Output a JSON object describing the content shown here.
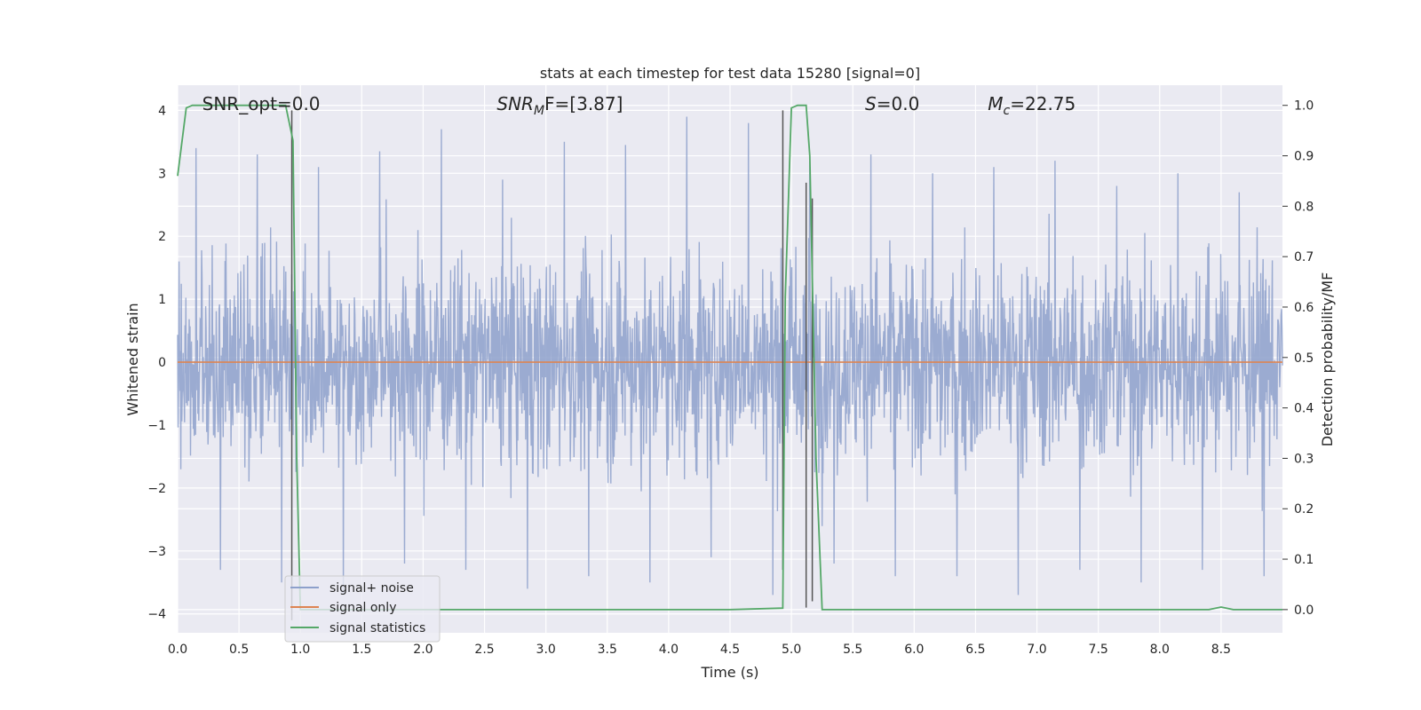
{
  "chart_data": {
    "type": "line",
    "title": "stats at each timestep for test data 15280 [signal=0]",
    "xlabel": "Time (s)",
    "ylabel_left": "Whitened strain",
    "ylabel_right": "Detection probability/MF",
    "xlim": [
      0.0,
      9.0
    ],
    "ylim_left": [
      -4.3,
      4.4
    ],
    "ylim_right": [
      -0.046,
      1.04
    ],
    "x_ticks": [
      0.0,
      0.5,
      1.0,
      1.5,
      2.0,
      2.5,
      3.0,
      3.5,
      4.0,
      4.5,
      5.0,
      5.5,
      6.0,
      6.5,
      7.0,
      7.5,
      8.0,
      8.5
    ],
    "x_tick_labels": [
      "0.0",
      "0.5",
      "1.0",
      "1.5",
      "2.0",
      "2.5",
      "3.0",
      "3.5",
      "4.0",
      "4.5",
      "5.0",
      "5.5",
      "6.0",
      "6.5",
      "7.0",
      "7.5",
      "8.0",
      "8.5"
    ],
    "y_left_ticks": [
      -4,
      -3,
      -2,
      -1,
      0,
      1,
      2,
      3,
      4
    ],
    "y_left_tick_labels": [
      "−4",
      "−3",
      "−2",
      "−1",
      "0",
      "1",
      "2",
      "3",
      "4"
    ],
    "y_right_ticks": [
      0.0,
      0.1,
      0.2,
      0.3,
      0.4,
      0.5,
      0.6,
      0.7,
      0.8,
      0.9,
      1.0
    ],
    "y_right_tick_labels": [
      "0.0",
      "0.1",
      "0.2",
      "0.3",
      "0.4",
      "0.5",
      "0.6",
      "0.7",
      "0.8",
      "0.9",
      "1.0"
    ],
    "annotations": [
      {
        "x": 0.2,
        "text": "SNR_opt=0.0"
      },
      {
        "x": 2.6,
        "text": "SNR_MF=[3.87]",
        "pre": "SNR",
        "sub": "M",
        "post": "F=[3.87]"
      },
      {
        "x": 5.6,
        "text": "S=0.0",
        "pre": "S",
        "post": "=0.0"
      },
      {
        "x": 6.6,
        "text": "M_c=22.75",
        "pre": "M",
        "sub": "c",
        "post": "=22.75"
      }
    ],
    "series": [
      {
        "name": "signal+ noise",
        "axis": "left",
        "color": "#8da0cb",
        "description": "whitened strain noise, roughly -2.3..2.5 envelope with spikes",
        "amplitude_envelope": 1.55,
        "peak_values": [
          3.4,
          3.3,
          3.1,
          3.35,
          3.7,
          2.9,
          3.5,
          3.45,
          3.9,
          3.8,
          3.2,
          3.3,
          3.0,
          3.1,
          3.2,
          2.8,
          3.0,
          2.7
        ],
        "trough_values": [
          -3.3,
          -3.5,
          -3.7,
          -3.2,
          -3.3,
          -3.6,
          -3.4,
          -3.5,
          -3.1,
          -3.7,
          -3.2,
          -3.4,
          -3.4,
          -3.7,
          -3.3,
          -3.5,
          -3.3,
          -3.4
        ]
      },
      {
        "name": "signal only",
        "axis": "left",
        "color": "#dd8452",
        "x": [
          0.0,
          9.0
        ],
        "y": [
          0.0,
          0.0
        ]
      },
      {
        "name": "signal statistics",
        "axis": "right",
        "color": "#55a868",
        "x": [
          0.0,
          0.07,
          0.12,
          0.2,
          0.88,
          0.94,
          0.97,
          1.0,
          1.05,
          4.5,
          4.93,
          4.95,
          5.0,
          5.05,
          5.12,
          5.15,
          5.2,
          5.25,
          8.4,
          8.5,
          8.6,
          9.0
        ],
        "y": [
          0.86,
          0.995,
          1.0,
          1.0,
          1.0,
          0.93,
          0.3,
          0.0,
          0.0,
          0.0,
          0.003,
          0.62,
          0.995,
          1.0,
          1.0,
          0.9,
          0.3,
          0.0,
          0.0,
          0.005,
          0.0,
          0.0
        ]
      }
    ],
    "vertical_markers": [
      {
        "x": 0.93,
        "y_range": [
          -4.1,
          4.0
        ]
      },
      {
        "x": 4.93,
        "y_range": [
          -3.3,
          4.0
        ]
      },
      {
        "x": 5.12,
        "y_range": [
          -3.9,
          2.85
        ]
      },
      {
        "x": 5.17,
        "y_range": [
          -3.8,
          2.6
        ]
      }
    ],
    "legend": {
      "position": "lower-left",
      "entries": [
        "signal+ noise",
        "signal only",
        "signal statistics"
      ]
    },
    "grid": true,
    "colors": {
      "background": "#eaeaf2",
      "grid": "#ffffff",
      "noise": "#8da0cb",
      "signal": "#dd8452",
      "stats": "#55a868",
      "marker": "#555555"
    }
  }
}
